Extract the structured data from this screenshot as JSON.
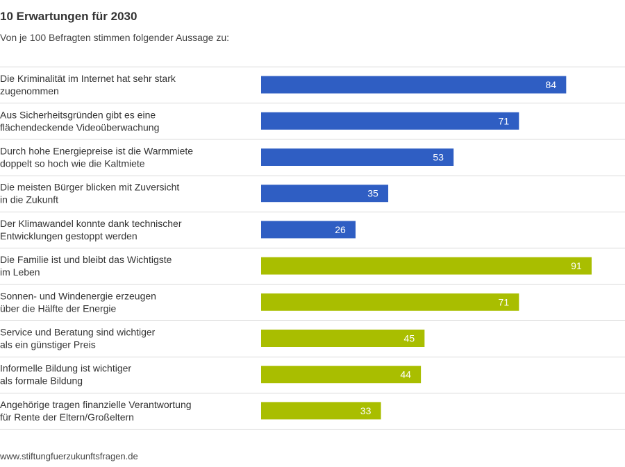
{
  "header": {
    "title": "10 Erwartungen für 2030",
    "subtitle": "Von je 100 Befragten stimmen folgender Aussage zu:"
  },
  "footer": {
    "source": "www.stiftungfuerzukunftsfragen.de"
  },
  "colors": {
    "blue": "#2F5EC3",
    "green": "#A9BE00",
    "separator": "#D9D9D9",
    "label_text": "#333333",
    "bar_text": "#FFFFFF"
  },
  "chart_data": {
    "type": "bar",
    "orientation": "horizontal",
    "title": "10 Erwartungen für 2030",
    "subtitle": "Von je 100 Befragten stimmen folgender Aussage zu:",
    "xlim": [
      0,
      100
    ],
    "grid": false,
    "legend": "none",
    "categories": [
      [
        "Die Kriminalität im Internet hat sehr stark",
        "zugenommen"
      ],
      [
        "Aus Sicherheitsgründen gibt es eine",
        "flächendeckende Videoüberwachung"
      ],
      [
        "Durch hohe Energiepreise ist die Warmmiete",
        "doppelt so hoch wie die Kaltmiete"
      ],
      [
        "Die meisten Bürger blicken mit Zuversicht",
        "in die Zukunft"
      ],
      [
        "Der Klimawandel konnte dank technischer",
        "Entwicklungen gestoppt werden"
      ],
      [
        "Die Familie ist und bleibt das Wichtigste",
        "im Leben"
      ],
      [
        "Sonnen- und Windenergie erzeugen",
        "über die Hälfte der Energie"
      ],
      [
        "Service und Beratung sind wichtiger",
        "als ein günstiger Preis"
      ],
      [
        "Informelle Bildung ist wichtiger",
        "als formale Bildung"
      ],
      [
        "Angehörige tragen finanzielle Verantwortung",
        "für Rente der Eltern/Großeltern"
      ]
    ],
    "values": [
      84,
      71,
      53,
      35,
      26,
      91,
      71,
      45,
      44,
      33
    ],
    "bar_colors": [
      "#2F5EC3",
      "#2F5EC3",
      "#2F5EC3",
      "#2F5EC3",
      "#2F5EC3",
      "#A9BE00",
      "#A9BE00",
      "#A9BE00",
      "#A9BE00",
      "#A9BE00"
    ]
  }
}
